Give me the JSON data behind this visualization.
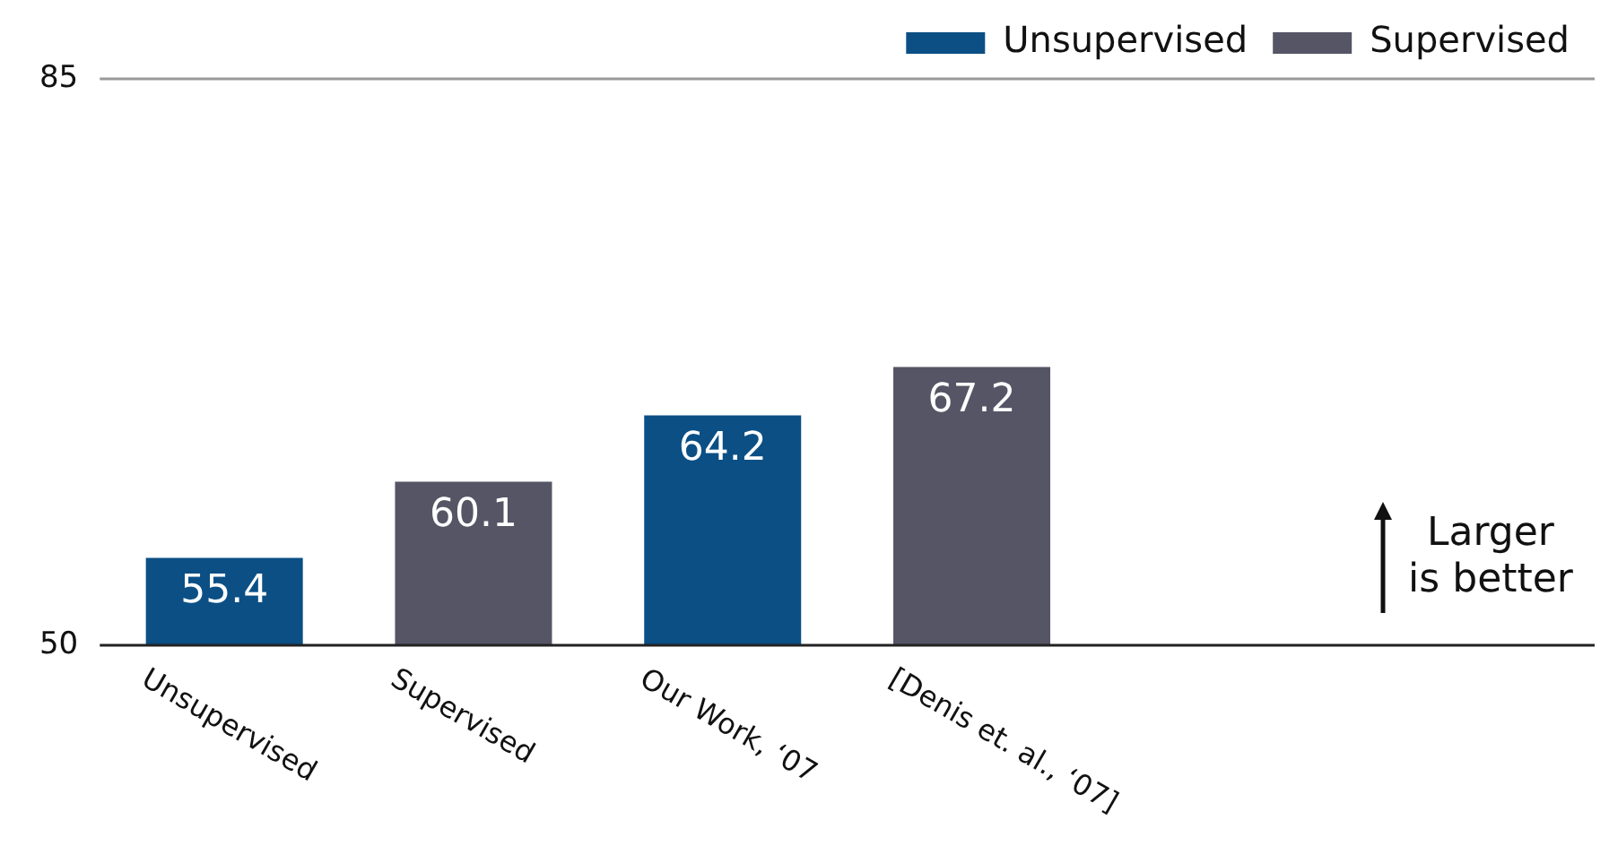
{
  "chart_data": {
    "type": "bar",
    "categories": [
      "Unsupervised",
      "Supervised",
      "Our Work, ‘07",
      "[Denis et. al., ‘07]",
      null,
      null
    ],
    "series": [
      {
        "name": "Unsupervised",
        "color": "#0b4f85",
        "values": [
          55.4,
          null,
          64.2,
          null,
          null,
          null
        ]
      },
      {
        "name": "Supervised",
        "color": "#555566",
        "values": [
          null,
          60.1,
          null,
          67.2,
          null,
          null
        ]
      }
    ],
    "ylim": [
      50,
      85
    ],
    "yticks": [
      50,
      85
    ],
    "legend": "top right",
    "data_labels": true,
    "annotations": [
      "Larger is better"
    ]
  }
}
